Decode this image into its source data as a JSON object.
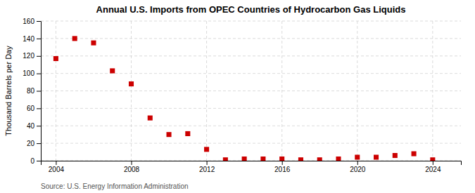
{
  "chart_data": {
    "type": "scatter",
    "title": "Annual U.S. Imports from OPEC Countries of Hydrocarbon Gas Liquids",
    "ylabel": "Thousand Barrels per Day",
    "source": "Source: U.S. Energy Information Administration",
    "x": [
      2004,
      2005,
      2006,
      2007,
      2008,
      2009,
      2010,
      2011,
      2012,
      2013,
      2014,
      2015,
      2016,
      2017,
      2018,
      2019,
      2020,
      2021,
      2022,
      2023,
      2024
    ],
    "values": [
      117,
      140,
      135,
      103,
      88,
      49,
      30,
      31,
      13,
      1,
      2,
      2,
      2,
      1,
      1,
      2,
      4,
      4,
      6,
      8,
      1
    ],
    "color": "#cc0000",
    "marker": "square",
    "xlim": [
      2003.2,
      2025.5
    ],
    "ylim": [
      0,
      160
    ],
    "xticks": [
      2004,
      2008,
      2012,
      2016,
      2020,
      2024
    ],
    "yticks": [
      0,
      20,
      40,
      60,
      80,
      100,
      120,
      140,
      160
    ],
    "grid": true
  }
}
